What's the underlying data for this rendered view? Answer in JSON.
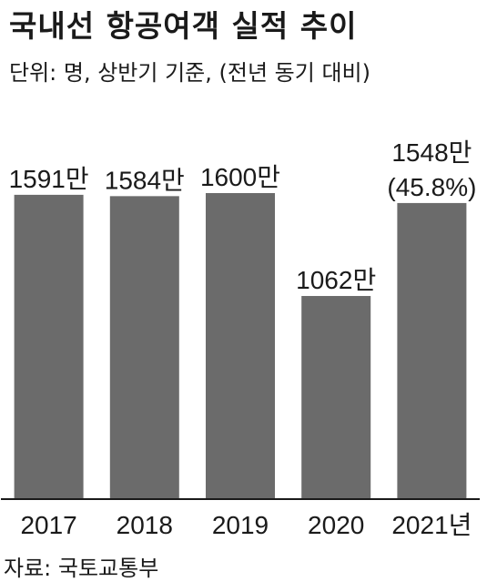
{
  "chart_data": {
    "type": "bar",
    "title": "국내선 항공여객 실적 추이",
    "subtitle": "단위: 명, 상반기 기준, (전년 동기 대비)",
    "source": "자료: 국토교통부",
    "categories": [
      "2017",
      "2018",
      "2019",
      "2020",
      "2021년"
    ],
    "values": [
      15910000,
      15840000,
      16000000,
      10620000,
      15480000
    ],
    "value_labels": [
      [
        "1591만"
      ],
      [
        "1584만"
      ],
      [
        "1600만"
      ],
      [
        "1062만"
      ],
      [
        "1548만",
        "(45.8%)"
      ]
    ],
    "ylim": [
      0,
      20000000
    ],
    "bar_color": "#6b6b6b",
    "axis_color": "#1a1a1a",
    "grid": false,
    "legend": "none"
  }
}
